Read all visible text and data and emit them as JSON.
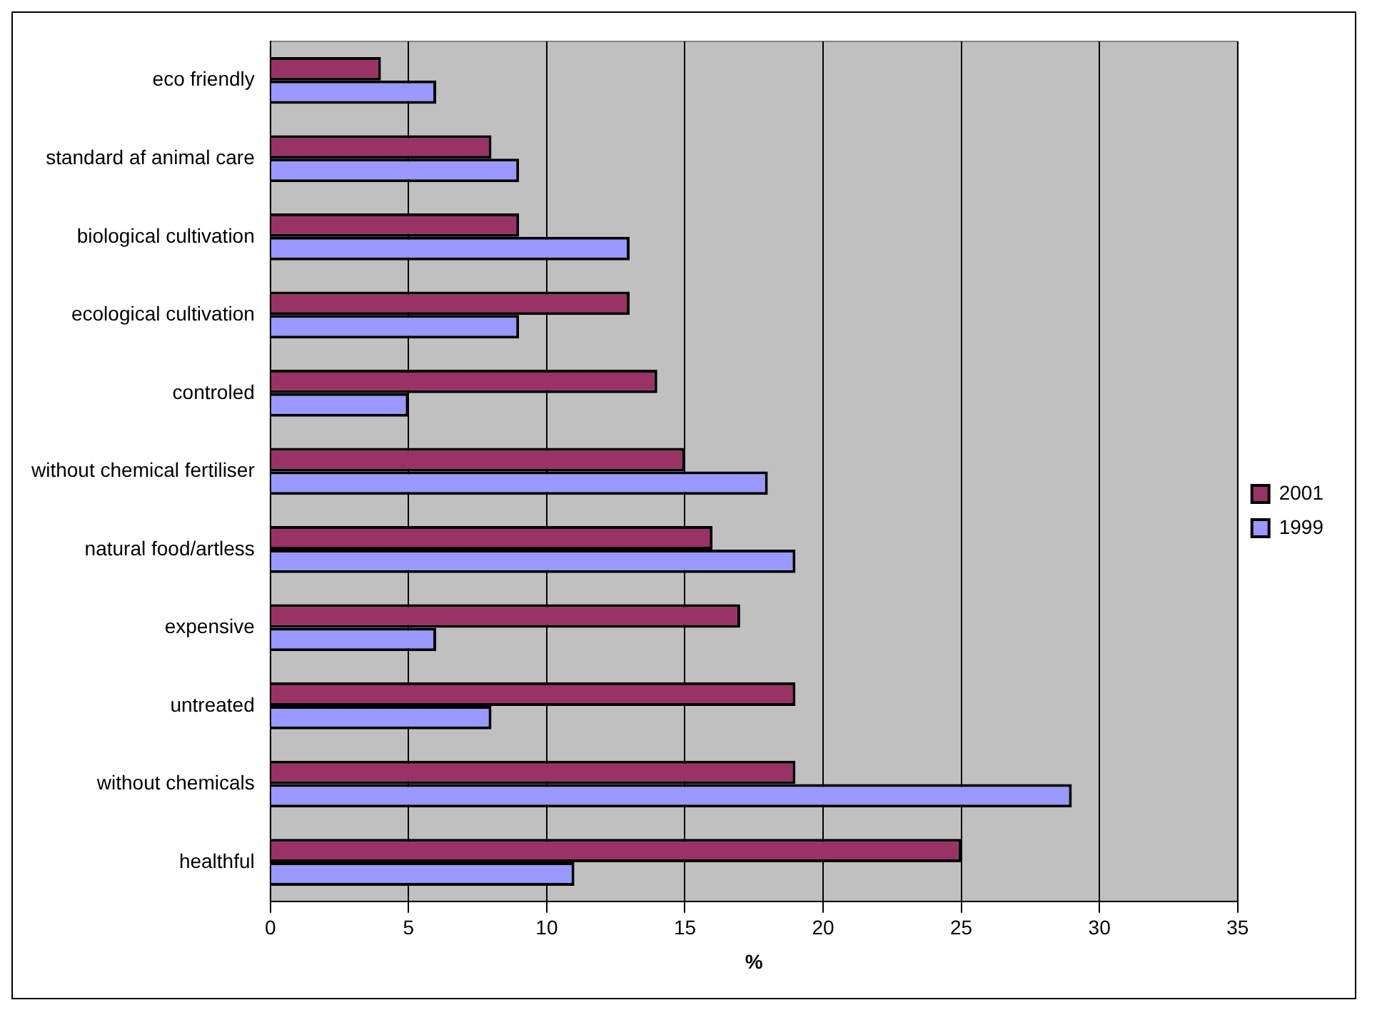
{
  "chart_data": {
    "type": "bar",
    "orientation": "horizontal",
    "categories": [
      "eco friendly",
      "standard af animal care",
      "biological cultivation",
      "ecological cultivation",
      "controled",
      "without chemical fertiliser",
      "natural food/artless",
      "expensive",
      "untreated",
      "without chemicals",
      "healthful"
    ],
    "series": [
      {
        "name": "2001",
        "color": "#993366",
        "values": [
          4,
          8,
          9,
          13,
          14,
          15,
          16,
          17,
          19,
          19,
          25
        ]
      },
      {
        "name": "1999",
        "color": "#9999ff",
        "values": [
          6,
          9,
          13,
          9,
          5,
          18,
          19,
          6,
          8,
          29,
          11
        ]
      }
    ],
    "xlabel": "%",
    "xlim": [
      0,
      35
    ],
    "xticks": [
      0,
      5,
      10,
      15,
      20,
      25,
      30,
      35
    ],
    "grid": "x",
    "legend": "right"
  }
}
